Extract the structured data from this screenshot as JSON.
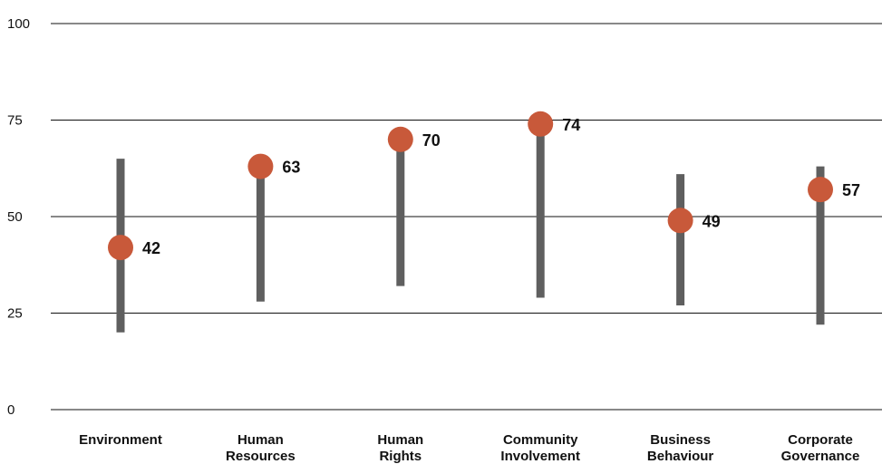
{
  "chart_data": {
    "type": "dot-range",
    "categories": [
      [
        "Environment"
      ],
      [
        "Human",
        "Resources"
      ],
      [
        "Human",
        "Rights"
      ],
      [
        "Community",
        "Involvement"
      ],
      [
        "Business",
        "Behaviour"
      ],
      [
        "Corporate",
        "Governance"
      ]
    ],
    "series": [
      {
        "values": [
          42,
          63,
          70,
          74,
          49,
          57
        ]
      }
    ],
    "ranges": [
      [
        20,
        65
      ],
      [
        28,
        62
      ],
      [
        32,
        67
      ],
      [
        29,
        72
      ],
      [
        27,
        61
      ],
      [
        22,
        63
      ]
    ],
    "ylim": [
      0,
      100
    ],
    "yticks": [
      "0",
      "25",
      "50",
      "75",
      "100"
    ],
    "grid": true,
    "legend": "none",
    "colors": {
      "dot": "#c8593a",
      "range": "#5f5f5f",
      "grid": "#111111",
      "text": "#111111"
    }
  }
}
